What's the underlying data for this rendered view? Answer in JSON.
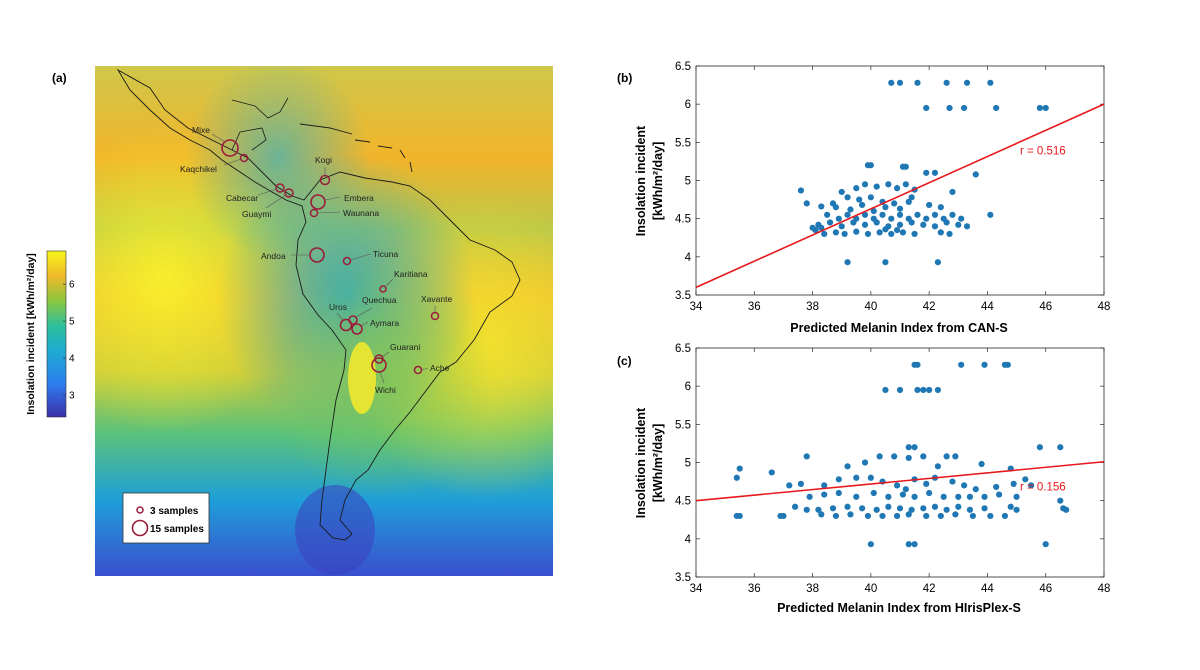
{
  "panels": {
    "a": {
      "label": "(a)",
      "colorbar": {
        "title": "Insolation incident [kWh/m²/day]",
        "ticks": [
          "3",
          "4",
          "5",
          "6"
        ],
        "min": 2.4,
        "max": 6.9
      },
      "populations": [
        {
          "name": "Mixe"
        },
        {
          "name": "Kaqchikel"
        },
        {
          "name": "Kogi"
        },
        {
          "name": "Cabecar"
        },
        {
          "name": "Guaymi"
        },
        {
          "name": "Embera"
        },
        {
          "name": "Waunana"
        },
        {
          "name": "Andoa"
        },
        {
          "name": "Ticuna"
        },
        {
          "name": "Karitiana"
        },
        {
          "name": "Quechua"
        },
        {
          "name": "Xavante"
        },
        {
          "name": "Uros"
        },
        {
          "name": "Aymara"
        },
        {
          "name": "Guarani"
        },
        {
          "name": "Wichi"
        },
        {
          "name": "Ache"
        }
      ],
      "legend": {
        "small": "3 samples",
        "large": "15 samples"
      }
    },
    "b": {
      "label": "(b)",
      "xlabel": "Predicted Melanin Index from CAN-S",
      "ylabel_line1": "Insolation incident",
      "ylabel_line2": "[kWh/m²/day]",
      "annotation": "r = 0.516"
    },
    "c": {
      "label": "(c)",
      "xlabel": "Predicted Melanin Index from HIrisPlex-S",
      "ylabel_line1": "Insolation incident",
      "ylabel_line2": "[kWh/m²/day]",
      "annotation": "r = 0.156"
    }
  },
  "chart_data": [
    {
      "type": "scatter",
      "panel": "b",
      "xlabel": "Predicted Melanin Index from CAN-S",
      "ylabel": "Insolation incident [kWh/m²/day]",
      "xlim": [
        34,
        48
      ],
      "ylim": [
        3.5,
        6.5
      ],
      "xticks": [
        34,
        36,
        38,
        40,
        42,
        44,
        46,
        48
      ],
      "yticks": [
        3.5,
        4,
        4.5,
        5,
        5.5,
        6,
        6.5
      ],
      "grid": false,
      "point_color": "#1f77b4",
      "line_color": "#e8181c",
      "fit_line": {
        "x": [
          34,
          48
        ],
        "y": [
          3.6,
          6.0
        ]
      },
      "annotation": "r = 0.516",
      "points": [
        [
          40.7,
          6.28
        ],
        [
          41.0,
          6.28
        ],
        [
          41.6,
          6.28
        ],
        [
          42.6,
          6.28
        ],
        [
          43.3,
          6.28
        ],
        [
          44.1,
          6.28
        ],
        [
          41.9,
          5.95
        ],
        [
          42.7,
          5.95
        ],
        [
          43.2,
          5.95
        ],
        [
          44.3,
          5.95
        ],
        [
          45.8,
          5.95
        ],
        [
          46.0,
          5.95
        ],
        [
          39.9,
          5.2
        ],
        [
          40.0,
          5.2
        ],
        [
          41.1,
          5.18
        ],
        [
          41.2,
          5.18
        ],
        [
          37.6,
          4.87
        ],
        [
          39.0,
          4.85
        ],
        [
          39.5,
          4.9
        ],
        [
          39.8,
          4.95
        ],
        [
          40.2,
          4.92
        ],
        [
          40.6,
          4.95
        ],
        [
          40.9,
          4.9
        ],
        [
          41.2,
          4.95
        ],
        [
          41.5,
          4.88
        ],
        [
          39.2,
          4.78
        ],
        [
          39.6,
          4.75
        ],
        [
          40.0,
          4.78
        ],
        [
          40.4,
          4.72
        ],
        [
          40.8,
          4.7
        ],
        [
          41.3,
          4.72
        ],
        [
          38.8,
          4.65
        ],
        [
          39.3,
          4.62
        ],
        [
          39.7,
          4.68
        ],
        [
          40.1,
          4.6
        ],
        [
          40.5,
          4.65
        ],
        [
          41.0,
          4.63
        ],
        [
          41.9,
          5.1
        ],
        [
          42.2,
          5.1
        ],
        [
          43.6,
          5.08
        ],
        [
          41.4,
          4.78
        ],
        [
          42.8,
          4.85
        ],
        [
          37.8,
          4.7
        ],
        [
          38.3,
          4.66
        ],
        [
          38.7,
          4.7
        ],
        [
          42.0,
          4.68
        ],
        [
          42.4,
          4.65
        ],
        [
          38.5,
          4.55
        ],
        [
          38.9,
          4.5
        ],
        [
          39.2,
          4.55
        ],
        [
          39.5,
          4.5
        ],
        [
          39.8,
          4.55
        ],
        [
          40.1,
          4.5
        ],
        [
          40.4,
          4.55
        ],
        [
          40.7,
          4.5
        ],
        [
          41.0,
          4.55
        ],
        [
          41.3,
          4.5
        ],
        [
          41.6,
          4.55
        ],
        [
          41.9,
          4.5
        ],
        [
          42.2,
          4.55
        ],
        [
          42.5,
          4.5
        ],
        [
          42.8,
          4.55
        ],
        [
          43.1,
          4.5
        ],
        [
          44.1,
          4.55
        ],
        [
          38.2,
          4.42
        ],
        [
          38.6,
          4.45
        ],
        [
          39.0,
          4.4
        ],
        [
          39.4,
          4.45
        ],
        [
          39.8,
          4.42
        ],
        [
          40.2,
          4.45
        ],
        [
          40.6,
          4.4
        ],
        [
          41.0,
          4.42
        ],
        [
          41.4,
          4.45
        ],
        [
          41.8,
          4.42
        ],
        [
          42.2,
          4.4
        ],
        [
          42.6,
          4.45
        ],
        [
          43.0,
          4.42
        ],
        [
          43.3,
          4.4
        ],
        [
          38.1,
          4.35
        ],
        [
          38.4,
          4.3
        ],
        [
          38.8,
          4.32
        ],
        [
          39.1,
          4.3
        ],
        [
          39.5,
          4.33
        ],
        [
          39.9,
          4.3
        ],
        [
          40.3,
          4.32
        ],
        [
          40.7,
          4.3
        ],
        [
          41.1,
          4.32
        ],
        [
          41.5,
          4.3
        ],
        [
          42.4,
          4.32
        ],
        [
          42.7,
          4.3
        ],
        [
          38.0,
          4.38
        ],
        [
          38.3,
          4.38
        ],
        [
          40.5,
          4.36
        ],
        [
          40.9,
          4.35
        ],
        [
          39.2,
          3.93
        ],
        [
          40.5,
          3.93
        ],
        [
          42.3,
          3.93
        ]
      ]
    },
    {
      "type": "scatter",
      "panel": "c",
      "xlabel": "Predicted Melanin Index from HIrisPlex-S",
      "ylabel": "Insolation incident [kWh/m²/day]",
      "xlim": [
        34,
        48
      ],
      "ylim": [
        3.5,
        6.5
      ],
      "xticks": [
        34,
        36,
        38,
        40,
        42,
        44,
        46,
        48
      ],
      "yticks": [
        3.5,
        4,
        4.5,
        5,
        5.5,
        6,
        6.5
      ],
      "grid": false,
      "point_color": "#1f77b4",
      "line_color": "#e8181c",
      "fit_line": {
        "x": [
          34,
          48
        ],
        "y": [
          4.5,
          5.01
        ]
      },
      "annotation": "r = 0.156",
      "points": [
        [
          41.5,
          6.28
        ],
        [
          41.6,
          6.28
        ],
        [
          43.1,
          6.28
        ],
        [
          43.9,
          6.28
        ],
        [
          44.6,
          6.28
        ],
        [
          44.7,
          6.28
        ],
        [
          40.5,
          5.95
        ],
        [
          41.0,
          5.95
        ],
        [
          41.6,
          5.95
        ],
        [
          41.8,
          5.95
        ],
        [
          42.0,
          5.95
        ],
        [
          42.3,
          5.95
        ],
        [
          41.3,
          5.2
        ],
        [
          41.5,
          5.2
        ],
        [
          45.8,
          5.2
        ],
        [
          46.5,
          5.2
        ],
        [
          35.4,
          4.8
        ],
        [
          35.5,
          4.92
        ],
        [
          36.6,
          4.87
        ],
        [
          37.8,
          5.08
        ],
        [
          39.2,
          4.95
        ],
        [
          39.8,
          5.0
        ],
        [
          40.3,
          5.08
        ],
        [
          40.8,
          5.08
        ],
        [
          41.3,
          5.06
        ],
        [
          41.8,
          5.08
        ],
        [
          42.3,
          4.95
        ],
        [
          42.6,
          5.08
        ],
        [
          42.9,
          5.08
        ],
        [
          43.8,
          4.98
        ],
        [
          44.8,
          4.92
        ],
        [
          45.3,
          4.78
        ],
        [
          45.5,
          4.7
        ],
        [
          37.2,
          4.7
        ],
        [
          37.6,
          4.72
        ],
        [
          38.4,
          4.7
        ],
        [
          38.9,
          4.78
        ],
        [
          39.5,
          4.8
        ],
        [
          40.0,
          4.8
        ],
        [
          40.4,
          4.75
        ],
        [
          40.9,
          4.7
        ],
        [
          41.2,
          4.65
        ],
        [
          41.5,
          4.78
        ],
        [
          41.9,
          4.72
        ],
        [
          42.2,
          4.8
        ],
        [
          42.8,
          4.75
        ],
        [
          43.2,
          4.7
        ],
        [
          43.6,
          4.65
        ],
        [
          44.3,
          4.68
        ],
        [
          44.9,
          4.72
        ],
        [
          37.9,
          4.55
        ],
        [
          38.4,
          4.58
        ],
        [
          38.9,
          4.6
        ],
        [
          39.5,
          4.55
        ],
        [
          40.1,
          4.6
        ],
        [
          40.6,
          4.55
        ],
        [
          41.1,
          4.58
        ],
        [
          41.5,
          4.55
        ],
        [
          42.0,
          4.6
        ],
        [
          42.5,
          4.55
        ],
        [
          43.0,
          4.55
        ],
        [
          43.4,
          4.55
        ],
        [
          43.9,
          4.55
        ],
        [
          44.4,
          4.58
        ],
        [
          45.0,
          4.55
        ],
        [
          37.4,
          4.42
        ],
        [
          37.8,
          4.38
        ],
        [
          38.2,
          4.38
        ],
        [
          38.7,
          4.4
        ],
        [
          39.2,
          4.42
        ],
        [
          39.7,
          4.4
        ],
        [
          40.2,
          4.38
        ],
        [
          40.6,
          4.42
        ],
        [
          41.0,
          4.4
        ],
        [
          41.4,
          4.38
        ],
        [
          41.8,
          4.4
        ],
        [
          42.2,
          4.42
        ],
        [
          42.6,
          4.38
        ],
        [
          43.0,
          4.42
        ],
        [
          43.4,
          4.38
        ],
        [
          43.9,
          4.4
        ],
        [
          44.8,
          4.42
        ],
        [
          45.0,
          4.38
        ],
        [
          46.6,
          4.4
        ],
        [
          35.4,
          4.3
        ],
        [
          35.5,
          4.3
        ],
        [
          36.9,
          4.3
        ],
        [
          37.0,
          4.3
        ],
        [
          38.3,
          4.32
        ],
        [
          38.8,
          4.3
        ],
        [
          39.3,
          4.32
        ],
        [
          39.9,
          4.3
        ],
        [
          40.4,
          4.3
        ],
        [
          40.9,
          4.3
        ],
        [
          41.3,
          4.32
        ],
        [
          41.9,
          4.3
        ],
        [
          42.4,
          4.3
        ],
        [
          42.9,
          4.32
        ],
        [
          43.5,
          4.3
        ],
        [
          44.1,
          4.3
        ],
        [
          44.6,
          4.3
        ],
        [
          46.7,
          4.38
        ],
        [
          46.5,
          4.5
        ],
        [
          40.0,
          3.93
        ],
        [
          41.3,
          3.93
        ],
        [
          41.5,
          3.93
        ],
        [
          46.0,
          3.93
        ]
      ]
    }
  ]
}
